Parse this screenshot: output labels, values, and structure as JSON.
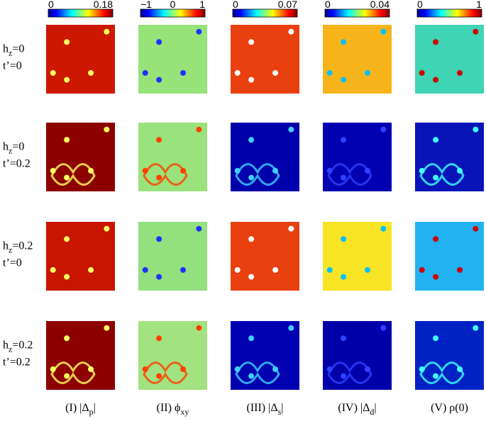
{
  "colorbars": [
    {
      "ticks": [
        "0",
        "0.18"
      ]
    },
    {
      "ticks": [
        "−1",
        "0",
        "1"
      ]
    },
    {
      "ticks": [
        "0",
        "0.07"
      ]
    },
    {
      "ticks": [
        "0",
        "0.04"
      ]
    },
    {
      "ticks": [
        "0",
        "1"
      ]
    }
  ],
  "rows": [
    {
      "h": "h",
      "sub": "z",
      "eq": "=0",
      "t": "t’=0"
    },
    {
      "h": "h",
      "sub": "z",
      "eq": "=0",
      "t": "t’=0.2"
    },
    {
      "h": "h",
      "sub": "z",
      "eq": "=0.2",
      "t": "t’=0"
    },
    {
      "h": "h",
      "sub": "z",
      "eq": "=0.2",
      "t": "t’=0.2"
    }
  ],
  "columns": [
    {
      "pre": "(I) |Δ",
      "sub": "p",
      "post": "|"
    },
    {
      "pre": "(II) ϕ",
      "sub": "xy",
      "post": ""
    },
    {
      "pre": "(III) |Δ",
      "sub": "s",
      "post": "|"
    },
    {
      "pre": "(IV) |Δ",
      "sub": "d",
      "post": "|"
    },
    {
      "pre": "(V) ρ(0)",
      "sub": "",
      "post": ""
    }
  ]
}
